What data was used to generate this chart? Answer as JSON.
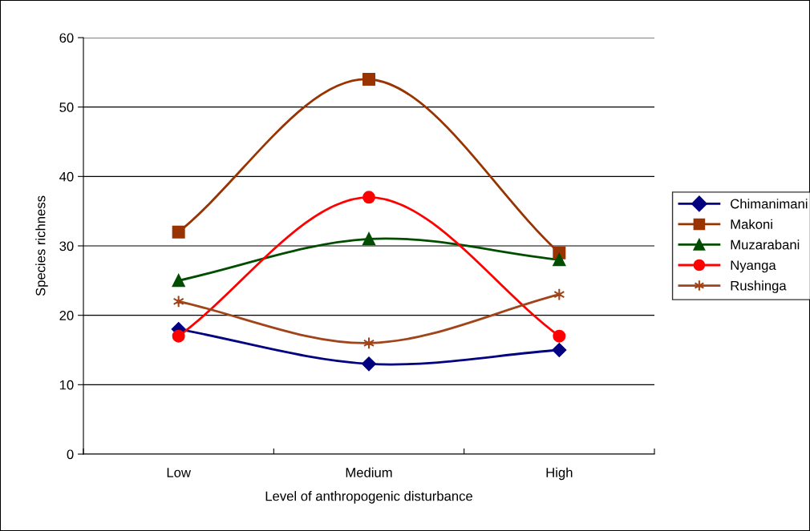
{
  "chart_data": {
    "type": "line",
    "xlabel": "Level of anthropogenic disturbance",
    "ylabel": "Species richness",
    "categories": [
      "Low",
      "Medium",
      "High"
    ],
    "series": [
      {
        "name": "Chimanimani",
        "color": "#000080",
        "marker": "diamond",
        "values": [
          18,
          13,
          15
        ]
      },
      {
        "name": "Makoni",
        "color": "#993300",
        "marker": "square",
        "values": [
          32,
          54,
          29
        ]
      },
      {
        "name": "Muzarabani",
        "color": "#004d00",
        "marker": "triangle",
        "values": [
          25,
          31,
          28
        ]
      },
      {
        "name": "Nyanga",
        "color": "#ff0000",
        "marker": "circle",
        "values": [
          17,
          37,
          17
        ]
      },
      {
        "name": "Rushinga",
        "color": "#a0441a",
        "marker": "cross",
        "values": [
          22,
          16,
          23
        ]
      }
    ],
    "ylim": [
      0,
      60
    ],
    "yticks": [
      0,
      10,
      20,
      30,
      40,
      50,
      60
    ],
    "grid": "y",
    "legend": "right",
    "line_style": "solid"
  }
}
